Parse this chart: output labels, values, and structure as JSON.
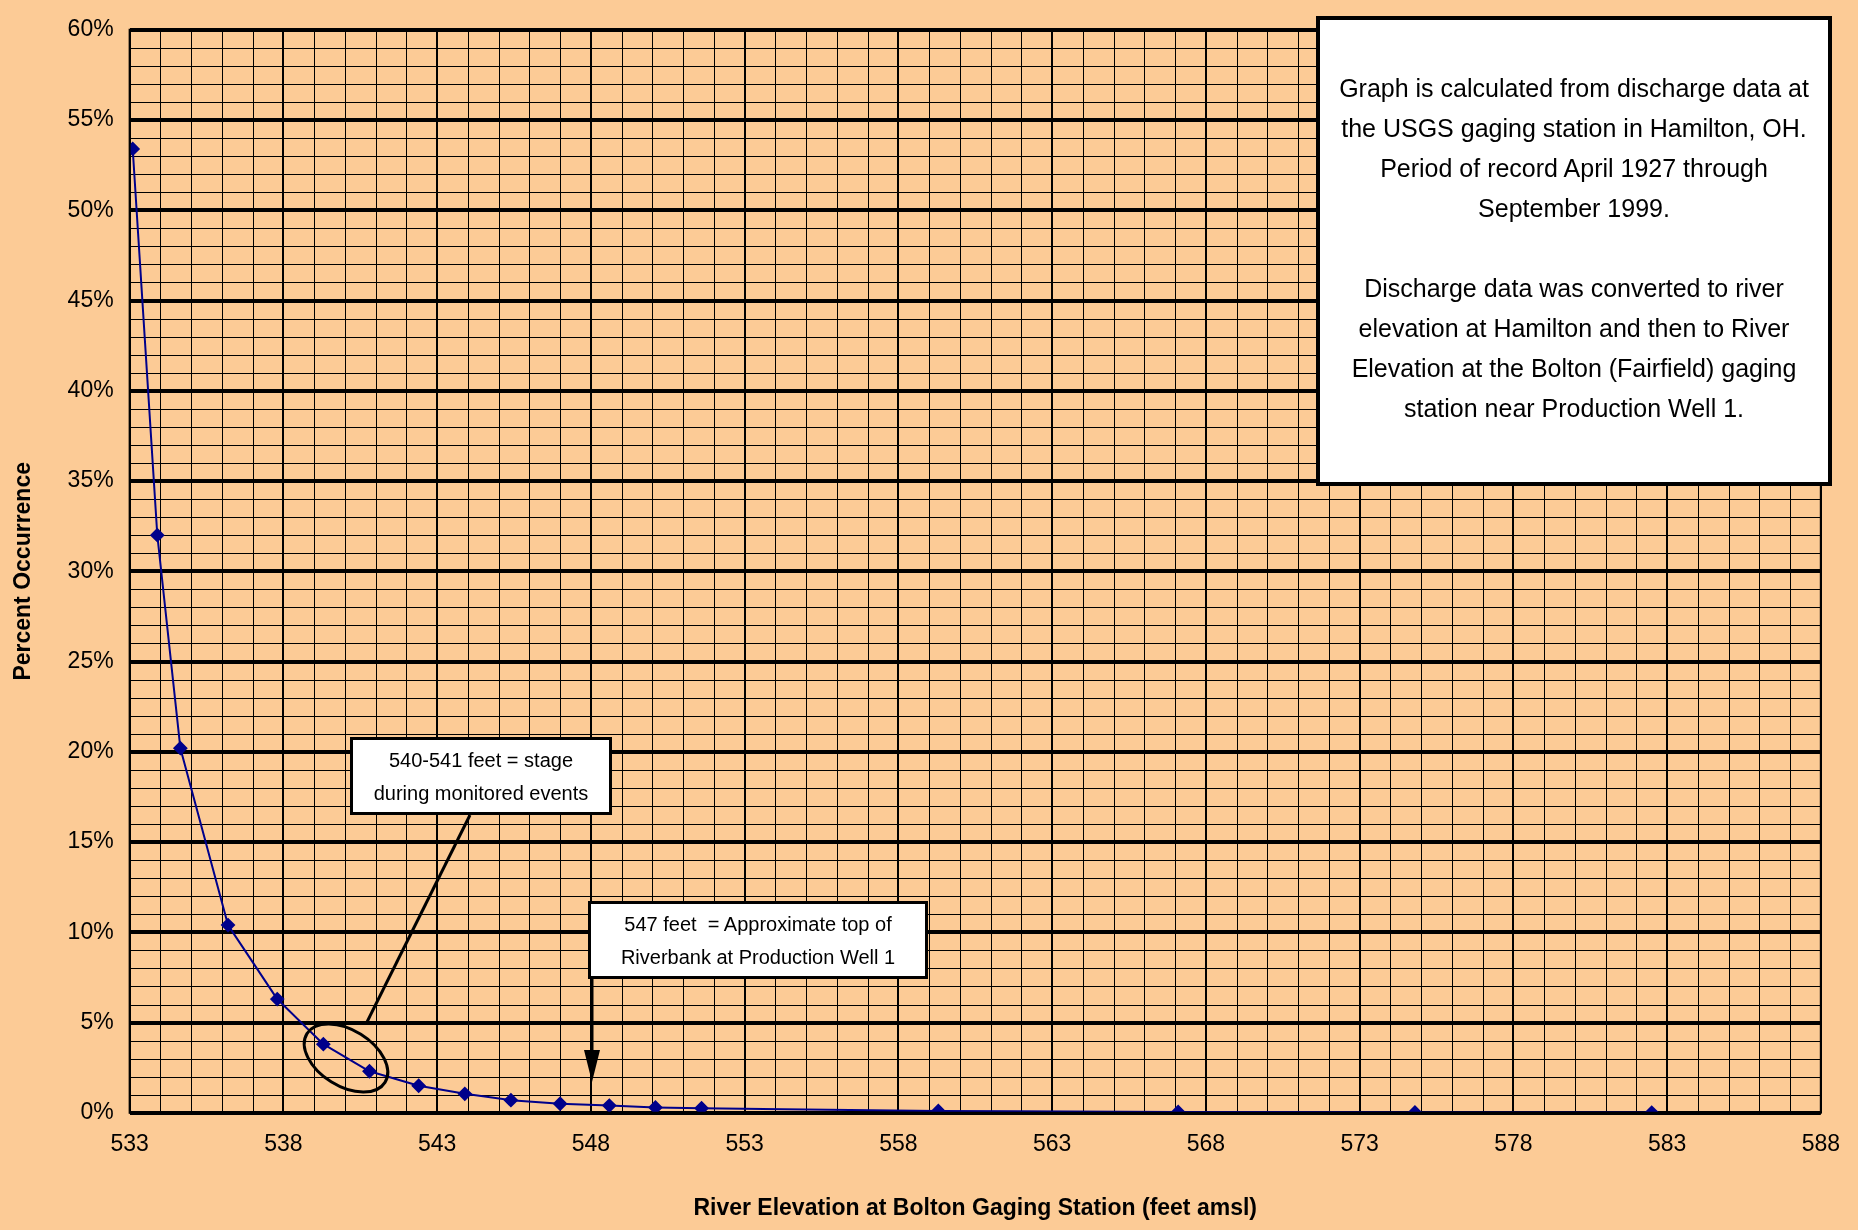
{
  "chart_data": {
    "type": "line",
    "xlabel": "River Elevation at Bolton Gaging Station (feet amsl)",
    "ylabel": "Percent Occurrence",
    "x": [
      533.1,
      533.9,
      534.65,
      536.2,
      537.8,
      539.3,
      540.8,
      542.4,
      543.9,
      545.4,
      547.0,
      548.6,
      550.1,
      551.6,
      559.3,
      567.1,
      574.8,
      582.5
    ],
    "series": [
      {
        "color": "#00008b",
        "values": [
          53.4,
          32.0,
          20.2,
          10.4,
          6.3,
          3.8,
          2.3,
          1.5,
          1.05,
          0.7,
          0.5,
          0.4,
          0.3,
          0.25,
          0.1,
          0.05,
          0.02,
          0.01
        ]
      }
    ],
    "xlim": [
      533,
      588
    ],
    "xticks": [
      533,
      538,
      543,
      548,
      553,
      558,
      563,
      568,
      573,
      578,
      583,
      588
    ],
    "ylim": [
      0,
      60
    ],
    "yticks": [
      {
        "value": 0,
        "label": "0%"
      },
      {
        "value": 5,
        "label": "5%"
      },
      {
        "value": 10,
        "label": "10%"
      },
      {
        "value": 15,
        "label": "15%"
      },
      {
        "value": 20,
        "label": "20%"
      },
      {
        "value": 25,
        "label": "25%"
      },
      {
        "value": 30,
        "label": "30%"
      },
      {
        "value": 35,
        "label": "35%"
      },
      {
        "value": 40,
        "label": "40%"
      },
      {
        "value": 45,
        "label": "45%"
      },
      {
        "value": 50,
        "label": "50%"
      },
      {
        "value": 55,
        "label": "55%"
      },
      {
        "value": 60,
        "label": "60%"
      }
    ],
    "grid": true,
    "marker": "diamond",
    "legend": false,
    "annotations": [
      "Graph is calculated from discharge data at the USGS gaging station in Hamilton, OH.  Period of record April 1927 through September 1999.",
      "Discharge data was converted to river elevation at Hamilton and then to River Elevation at the Bolton (Fairfield) gaging station near Production Well 1.",
      "540-541 feet = stage during monitored events",
      "547 feet  = Approximate top of Riverbank at Production Well 1"
    ]
  }
}
